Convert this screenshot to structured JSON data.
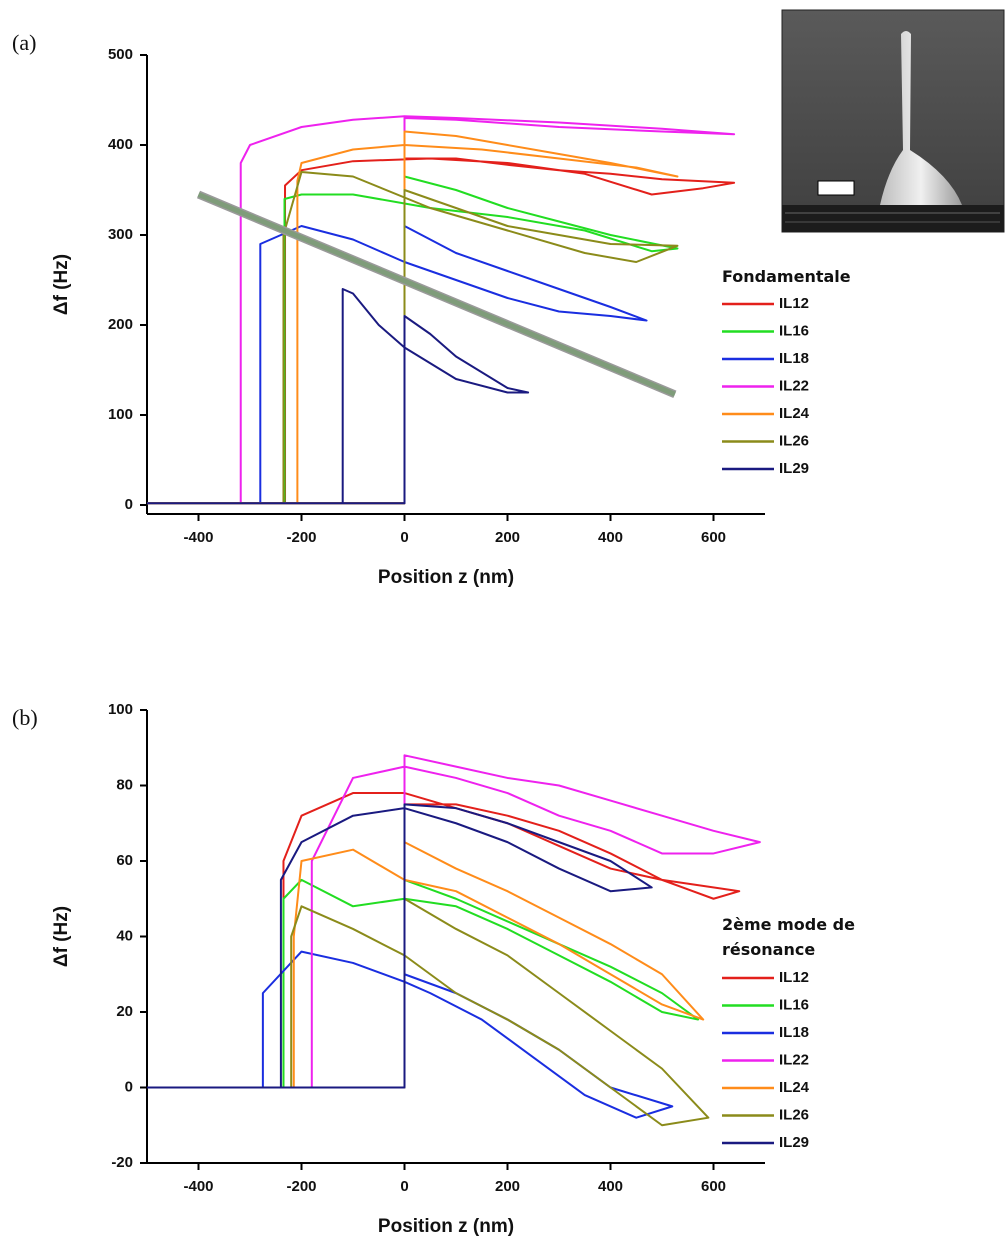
{
  "chart_data": [
    {
      "type": "line",
      "panel_label": "(a)",
      "xlabel": "Position z (nm)",
      "ylabel": "Δf (Hz)",
      "legend_title": "Fondamentale",
      "xlim": [
        -500,
        700
      ],
      "ylim": [
        -10,
        500
      ],
      "xticks": [
        -400,
        -200,
        0,
        200,
        400,
        600
      ],
      "yticks": [
        0,
        100,
        200,
        300,
        400,
        500
      ],
      "annotation_line": {
        "x": [
          -400,
          525
        ],
        "values": [
          345,
          123
        ],
        "color": "#7f9c7a"
      },
      "series": [
        {
          "name": "IL12",
          "color": "#e3201b",
          "x": [
            -500,
            0,
            0,
            100,
            200,
            300,
            400,
            500,
            640,
            580,
            480,
            350,
            200,
            50,
            -100,
            -200,
            -232,
            -232,
            -500
          ],
          "values": [
            2,
            2,
            385,
            385,
            378,
            372,
            368,
            362,
            358,
            352,
            345,
            368,
            380,
            385,
            382,
            372,
            355,
            2,
            2
          ]
        },
        {
          "name": "IL16",
          "color": "#22dd22",
          "x": [
            -500,
            0,
            0,
            100,
            200,
            300,
            400,
            530,
            480,
            350,
            200,
            50,
            -100,
            -200,
            -233,
            -233,
            -500
          ],
          "values": [
            2,
            2,
            365,
            350,
            330,
            315,
            300,
            285,
            282,
            305,
            320,
            330,
            345,
            345,
            340,
            2,
            2
          ]
        },
        {
          "name": "IL18",
          "color": "#1a2ee0",
          "x": [
            -500,
            0,
            0,
            100,
            200,
            300,
            400,
            470,
            400,
            300,
            200,
            100,
            0,
            -100,
            -200,
            -280,
            -280,
            -500
          ],
          "values": [
            2,
            2,
            310,
            280,
            260,
            240,
            220,
            205,
            210,
            215,
            230,
            250,
            270,
            295,
            310,
            290,
            2,
            2
          ]
        },
        {
          "name": "IL22",
          "color": "#ee22ee",
          "x": [
            -500,
            0,
            0,
            100,
            300,
            500,
            640,
            500,
            300,
            100,
            0,
            -100,
            -200,
            -300,
            -318,
            -318,
            -500
          ],
          "values": [
            2,
            2,
            430,
            428,
            420,
            415,
            412,
            418,
            425,
            430,
            432,
            428,
            420,
            400,
            380,
            2,
            2
          ]
        },
        {
          "name": "IL24",
          "color": "#ff8c1a",
          "x": [
            -500,
            0,
            0,
            100,
            200,
            300,
            400,
            530,
            450,
            300,
            150,
            0,
            -100,
            -200,
            -208,
            -208,
            -500
          ],
          "values": [
            2,
            2,
            415,
            410,
            400,
            390,
            380,
            365,
            375,
            385,
            395,
            400,
            395,
            380,
            360,
            2,
            2
          ]
        },
        {
          "name": "IL26",
          "color": "#8b8b1a",
          "x": [
            -500,
            0,
            0,
            100,
            200,
            300,
            400,
            530,
            450,
            350,
            200,
            50,
            -100,
            -200,
            -235,
            -235,
            -500
          ],
          "values": [
            2,
            2,
            350,
            330,
            310,
            300,
            290,
            288,
            270,
            280,
            305,
            330,
            365,
            370,
            300,
            2,
            2
          ]
        },
        {
          "name": "IL29",
          "color": "#1a1a80",
          "x": [
            -500,
            0,
            0,
            50,
            100,
            200,
            240,
            200,
            100,
            0,
            -50,
            -100,
            -120,
            -120,
            -500
          ],
          "values": [
            2,
            2,
            210,
            190,
            165,
            130,
            125,
            125,
            140,
            175,
            200,
            235,
            240,
            2,
            2
          ]
        }
      ]
    },
    {
      "type": "line",
      "panel_label": "(b)",
      "xlabel": "Position z (nm)",
      "ylabel": "Δf (Hz)",
      "legend_title": "2ème mode de résonance",
      "xlim": [
        -500,
        700
      ],
      "ylim": [
        -20,
        100
      ],
      "xticks": [
        -400,
        -200,
        0,
        200,
        400,
        600
      ],
      "yticks": [
        -20,
        0,
        20,
        40,
        60,
        80,
        100
      ],
      "series": [
        {
          "name": "IL12",
          "color": "#e3201b",
          "x": [
            -500,
            0,
            0,
            100,
            200,
            300,
            400,
            500,
            650,
            600,
            500,
            400,
            300,
            200,
            100,
            0,
            -100,
            -200,
            -235,
            -235,
            -500
          ],
          "values": [
            0,
            0,
            75,
            75,
            72,
            68,
            62,
            55,
            52,
            50,
            55,
            58,
            64,
            70,
            74,
            78,
            78,
            72,
            60,
            0,
            0
          ]
        },
        {
          "name": "IL16",
          "color": "#22dd22",
          "x": [
            -500,
            0,
            0,
            100,
            200,
            300,
            400,
            500,
            570,
            500,
            400,
            300,
            200,
            100,
            0,
            -100,
            -200,
            -235,
            -235,
            -500
          ],
          "values": [
            0,
            0,
            55,
            50,
            44,
            38,
            32,
            25,
            18,
            20,
            28,
            35,
            42,
            48,
            50,
            48,
            55,
            50,
            0,
            0
          ]
        },
        {
          "name": "IL18",
          "color": "#1a2ee0",
          "x": [
            -500,
            0,
            0,
            100,
            200,
            300,
            400,
            520,
            450,
            350,
            250,
            150,
            50,
            0,
            -100,
            -200,
            -275,
            -275,
            -500
          ],
          "values": [
            0,
            0,
            30,
            25,
            18,
            10,
            0,
            -5,
            -8,
            -2,
            8,
            18,
            25,
            28,
            33,
            36,
            25,
            0,
            0
          ]
        },
        {
          "name": "IL22",
          "color": "#ee22ee",
          "x": [
            -500,
            0,
            0,
            100,
            200,
            300,
            400,
            500,
            600,
            690,
            600,
            500,
            400,
            300,
            200,
            100,
            0,
            -100,
            -180,
            -180,
            -500
          ],
          "values": [
            0,
            0,
            88,
            85,
            82,
            80,
            76,
            72,
            68,
            65,
            62,
            62,
            68,
            72,
            78,
            82,
            85,
            82,
            60,
            0,
            0
          ]
        },
        {
          "name": "IL24",
          "color": "#ff8c1a",
          "x": [
            -500,
            0,
            0,
            100,
            200,
            300,
            400,
            500,
            580,
            500,
            400,
            300,
            200,
            100,
            0,
            -100,
            -200,
            -215,
            -215,
            -500
          ],
          "values": [
            0,
            0,
            65,
            58,
            52,
            45,
            38,
            30,
            18,
            22,
            30,
            38,
            45,
            52,
            55,
            63,
            60,
            40,
            0,
            0
          ]
        },
        {
          "name": "IL26",
          "color": "#8b8b1a",
          "x": [
            -500,
            0,
            0,
            100,
            200,
            300,
            400,
            500,
            590,
            500,
            400,
            300,
            200,
            100,
            0,
            -100,
            -200,
            -220,
            -220,
            -500
          ],
          "values": [
            0,
            0,
            50,
            42,
            35,
            25,
            15,
            5,
            -8,
            -10,
            0,
            10,
            18,
            25,
            35,
            42,
            48,
            40,
            0,
            0
          ]
        },
        {
          "name": "IL29",
          "color": "#1a1a80",
          "x": [
            -500,
            0,
            0,
            100,
            200,
            300,
            400,
            480,
            400,
            300,
            200,
            100,
            0,
            -100,
            -200,
            -240,
            -240,
            -500
          ],
          "values": [
            0,
            0,
            75,
            74,
            70,
            65,
            60,
            53,
            52,
            58,
            65,
            70,
            74,
            72,
            65,
            55,
            0,
            0
          ]
        }
      ]
    }
  ]
}
